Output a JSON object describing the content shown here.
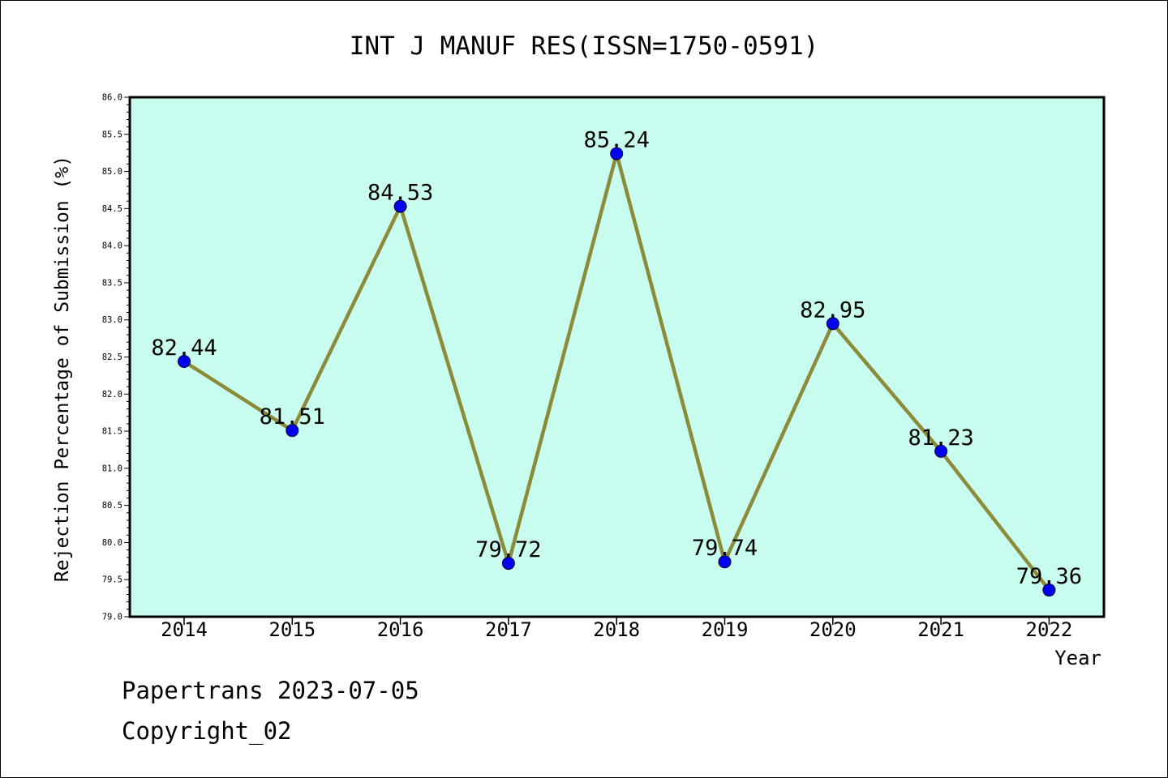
{
  "chart_data": {
    "type": "line",
    "title": "INT J MANUF RES(ISSN=1750-0591)",
    "xlabel": "Year",
    "ylabel": "Rejection Percentage of Submission (%)",
    "x": [
      "2014",
      "2015",
      "2016",
      "2017",
      "2018",
      "2019",
      "2020",
      "2021",
      "2022"
    ],
    "series": [
      {
        "values": [
          82.44,
          81.51,
          84.53,
          79.72,
          85.24,
          79.74,
          82.95,
          81.23,
          79.36
        ],
        "labels": [
          "82.44",
          "81.51",
          "84.53",
          "79.72",
          "85.24",
          "79.74",
          "82.95",
          "81.23",
          "79.36"
        ]
      }
    ],
    "ylim": [
      79.0,
      86.0
    ],
    "yticks": [
      "79.0",
      "79.5",
      "80.0",
      "80.5",
      "81.0",
      "81.5",
      "82.0",
      "82.5",
      "83.0",
      "83.5",
      "84.0",
      "84.5",
      "85.0",
      "85.5",
      "86.0"
    ],
    "grid": false,
    "colors": {
      "plot_background": "#c8fcee",
      "line": "#8b8b3a",
      "marker": "#0000ee"
    }
  },
  "footer": {
    "line1": "Papertrans 2023-07-05",
    "line2": "Copyright_02"
  }
}
